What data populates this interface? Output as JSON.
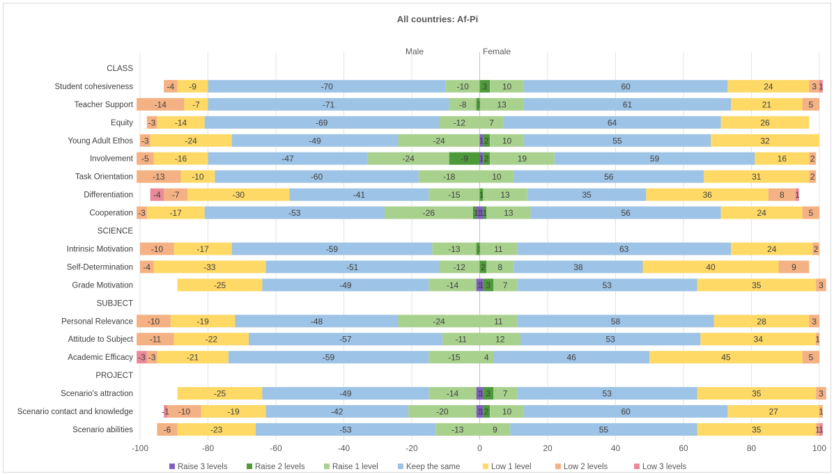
{
  "chart_data": {
    "type": "bar",
    "orientation": "horizontal",
    "stacked": "diverging",
    "title": "All countries: Af-Pi",
    "side_labels": {
      "left": "Male",
      "right": "Female"
    },
    "xlim": [
      -100,
      100
    ],
    "xticks": [
      -100,
      -80,
      -60,
      -40,
      -20,
      0,
      20,
      40,
      60,
      80,
      100
    ],
    "grid": "vertical",
    "legend": "bottom",
    "series": [
      {
        "name": "Raise 3 levels",
        "color": "#7f5fbf"
      },
      {
        "name": "Raise 2 levels",
        "color": "#4e9a3a"
      },
      {
        "name": "Raise 1 level",
        "color": "#a9d18e"
      },
      {
        "name": "Keep the same",
        "color": "#9dc3e6"
      },
      {
        "name": "Low 1 level",
        "color": "#ffd966"
      },
      {
        "name": "Low 2 levels",
        "color": "#f4b183"
      },
      {
        "name": "Low 3 levels",
        "color": "#ea8a98"
      }
    ],
    "rows": [
      {
        "label": "CLASS",
        "header": true
      },
      {
        "label": "Student cohesiveness",
        "male": [
          0,
          0,
          -10,
          -70,
          -9,
          -4,
          0
        ],
        "female": [
          0,
          3,
          10,
          60,
          24,
          3,
          1
        ]
      },
      {
        "label": "Teacher Support",
        "male": [
          0,
          -1,
          -8,
          -71,
          -7,
          -14,
          0
        ],
        "female": [
          0,
          0,
          13,
          61,
          21,
          5,
          0
        ]
      },
      {
        "label": "Equity",
        "male": [
          0,
          0,
          -12,
          -69,
          -14,
          -3,
          0
        ],
        "female": [
          0,
          0,
          7,
          64,
          26,
          0,
          0
        ]
      },
      {
        "label": "Young Adult Ethos",
        "male": [
          0,
          0,
          -24,
          -49,
          -24,
          -3,
          0
        ],
        "female": [
          1,
          2,
          10,
          55,
          32,
          0,
          0
        ]
      },
      {
        "label": "Involvement",
        "male": [
          0,
          -9,
          -24,
          -47,
          -16,
          -5,
          0
        ],
        "female": [
          1,
          2,
          19,
          59,
          16,
          2,
          0
        ]
      },
      {
        "label": "Task Orientation",
        "male": [
          0,
          0,
          -18,
          -60,
          -10,
          -13,
          0
        ],
        "female": [
          0,
          0,
          10,
          56,
          31,
          2,
          0
        ]
      },
      {
        "label": "Differentiation",
        "male": [
          0,
          0,
          -15,
          -41,
          -30,
          -7,
          -4
        ],
        "female": [
          0,
          1,
          13,
          35,
          36,
          8,
          1
        ]
      },
      {
        "label": "Cooperation",
        "male": [
          -1,
          -1,
          -26,
          -53,
          -17,
          -3,
          0
        ],
        "female": [
          1,
          1,
          13,
          56,
          24,
          5,
          0
        ]
      },
      {
        "label": "SCIENCE",
        "header": true
      },
      {
        "label": "Intrinsic Motivation",
        "male": [
          0,
          -1,
          -13,
          -59,
          -17,
          -10,
          0
        ],
        "female": [
          0,
          0,
          11,
          63,
          24,
          2,
          0
        ]
      },
      {
        "label": "Self-Determination",
        "male": [
          0,
          0,
          -12,
          -51,
          -33,
          -4,
          0
        ],
        "female": [
          0,
          2,
          8,
          38,
          40,
          9,
          0
        ]
      },
      {
        "label": "Grade Motivation",
        "male": [
          -1,
          0,
          -14,
          -49,
          -25,
          0,
          0
        ],
        "female": [
          1,
          3,
          7,
          53,
          35,
          3,
          0
        ]
      },
      {
        "label": "SUBJECT",
        "header": true
      },
      {
        "label": "Personal Relevance",
        "male": [
          0,
          0,
          -24,
          -48,
          -19,
          -10,
          0
        ],
        "female": [
          0,
          0,
          11,
          58,
          28,
          3,
          0
        ]
      },
      {
        "label": "Attitude to Subject",
        "male": [
          0,
          0,
          -11,
          -57,
          -22,
          -11,
          0
        ],
        "female": [
          0,
          0,
          12,
          53,
          34,
          1,
          0
        ]
      },
      {
        "label": "Academic Efficacy",
        "male": [
          0,
          0,
          -15,
          -59,
          -21,
          -3,
          -3
        ],
        "female": [
          0,
          0,
          4,
          46,
          45,
          5,
          0
        ]
      },
      {
        "label": "PROJECT",
        "header": true
      },
      {
        "label": "Scenario's attraction",
        "male": [
          -1,
          0,
          -14,
          -49,
          -25,
          0,
          0
        ],
        "female": [
          1,
          3,
          7,
          53,
          35,
          3,
          0
        ]
      },
      {
        "label": "Scenario contact and knowledge",
        "male": [
          -1,
          0,
          -20,
          -42,
          -19,
          -10,
          -1
        ],
        "female": [
          1,
          2,
          10,
          60,
          27,
          1,
          0
        ]
      },
      {
        "label": "Scenario abilities",
        "male": [
          0,
          0,
          -13,
          -53,
          -23,
          -6,
          0
        ],
        "female": [
          0,
          0,
          9,
          55,
          35,
          1,
          1
        ]
      }
    ]
  }
}
